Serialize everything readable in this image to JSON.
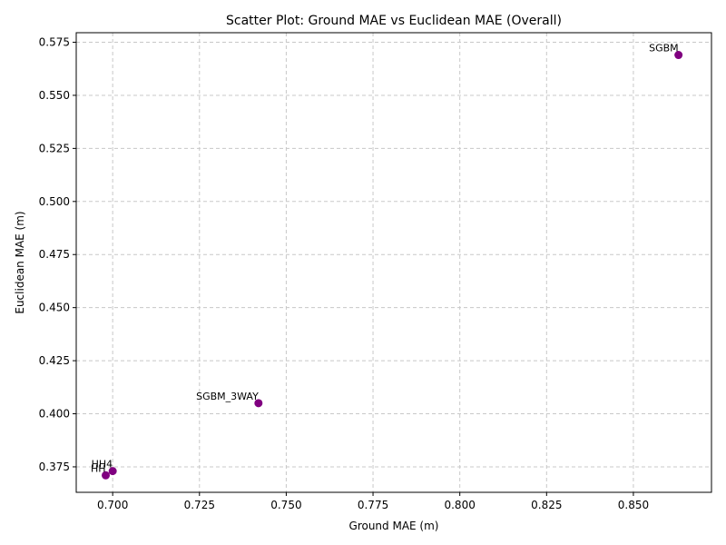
{
  "chart_data": {
    "type": "scatter",
    "title": "Scatter Plot: Ground MAE vs Euclidean MAE (Overall)",
    "xlabel": "Ground MAE (m)",
    "ylabel": "Euclidean MAE (m)",
    "xlim": [
      0.6895,
      0.8725
    ],
    "ylim": [
      0.363,
      0.5795
    ],
    "xticks": [
      0.7,
      0.725,
      0.75,
      0.775,
      0.8,
      0.825,
      0.85
    ],
    "xtick_labels": [
      "0.700",
      "0.725",
      "0.750",
      "0.775",
      "0.800",
      "0.825",
      "0.850"
    ],
    "yticks": [
      0.375,
      0.4,
      0.425,
      0.45,
      0.475,
      0.5,
      0.525,
      0.55,
      0.575
    ],
    "ytick_labels": [
      "0.375",
      "0.400",
      "0.425",
      "0.450",
      "0.475",
      "0.500",
      "0.525",
      "0.550",
      "0.575"
    ],
    "grid": true,
    "marker_color": "#800080",
    "points": [
      {
        "label": "SGBM",
        "x": 0.863,
        "y": 0.569
      },
      {
        "label": "SGBM_3WAY",
        "x": 0.742,
        "y": 0.405
      },
      {
        "label": "HH4",
        "x": 0.7,
        "y": 0.373
      },
      {
        "label": "HH",
        "x": 0.698,
        "y": 0.371
      }
    ]
  }
}
